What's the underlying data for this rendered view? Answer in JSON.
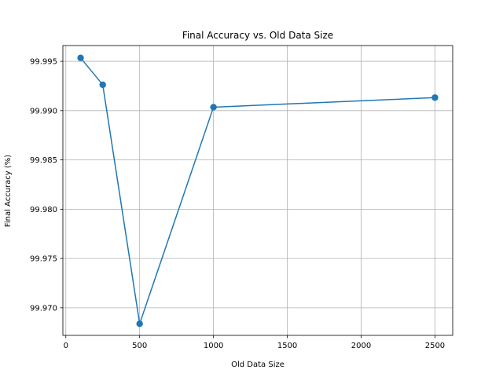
{
  "chart_data": {
    "type": "line",
    "title": "Final Accuracy vs. Old Data Size",
    "xlabel": "Old Data Size",
    "ylabel": "Final Accuracy (%)",
    "x": [
      100,
      250,
      500,
      1000,
      2500
    ],
    "series": [
      {
        "values": [
          99.99535,
          99.99262,
          99.96838,
          99.99035,
          99.99132
        ],
        "color": "#1f77b4",
        "marker": "circle"
      }
    ],
    "xlim": [
      -20,
      2620
    ],
    "ylim": [
      99.9672,
      99.9966
    ],
    "xticks": [
      0,
      500,
      1000,
      1500,
      2000,
      2500
    ],
    "xtick_labels": [
      "0",
      "500",
      "1000",
      "1500",
      "2000",
      "2500"
    ],
    "yticks": [
      99.97,
      99.975,
      99.98,
      99.985,
      99.99,
      99.995
    ],
    "ytick_labels": [
      "99.970",
      "99.975",
      "99.980",
      "99.985",
      "99.990",
      "99.995"
    ],
    "grid": true,
    "grid_color": "#b0b0b0"
  }
}
